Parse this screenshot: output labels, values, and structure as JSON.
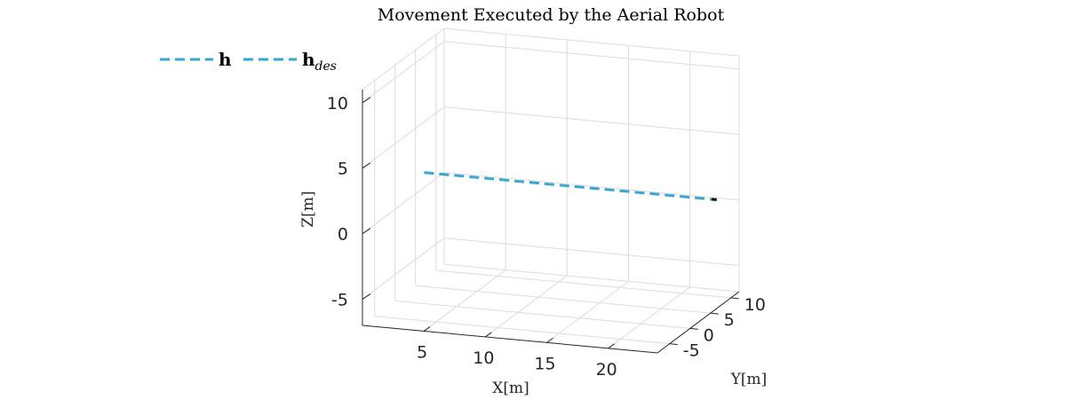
{
  "chart_data": {
    "type": "line3d",
    "title": "Movement Executed by the Aerial Robot",
    "xlabel": "X[m]",
    "ylabel": "Y[m]",
    "zlabel": "Z[m]",
    "xticks": [
      5,
      10,
      15,
      20
    ],
    "yticks": [
      -5,
      0,
      5,
      10
    ],
    "zticks": [
      10,
      5,
      0,
      -5
    ],
    "xticklabels": [
      "5",
      "10",
      "15",
      "20"
    ],
    "yticklabels": [
      "-5",
      "0",
      "5",
      "10"
    ],
    "zticklabels": [
      "10",
      "5",
      "0",
      "-5"
    ],
    "xlim": [
      0,
      24
    ],
    "ylim": [
      -8,
      12
    ],
    "zlim": [
      -7,
      11
    ],
    "grid": true,
    "legend_position": "top-left",
    "legend": [
      {
        "label": "h",
        "subscript": ""
      },
      {
        "label": "h",
        "subscript": "des"
      }
    ],
    "series": [
      {
        "label_ref": 0,
        "color": "#000000",
        "style": "solid",
        "x": [
          23.6,
          24.0
        ],
        "y": [
          6.5,
          6.5
        ],
        "z": [
          1.3,
          1.3
        ]
      },
      {
        "label_ref": 1,
        "color": "#3aa6d2",
        "style": "dashed",
        "x": [
          0.2,
          24.0
        ],
        "y": [
          6.5,
          6.5
        ],
        "z": [
          1.3,
          1.3
        ]
      }
    ]
  }
}
